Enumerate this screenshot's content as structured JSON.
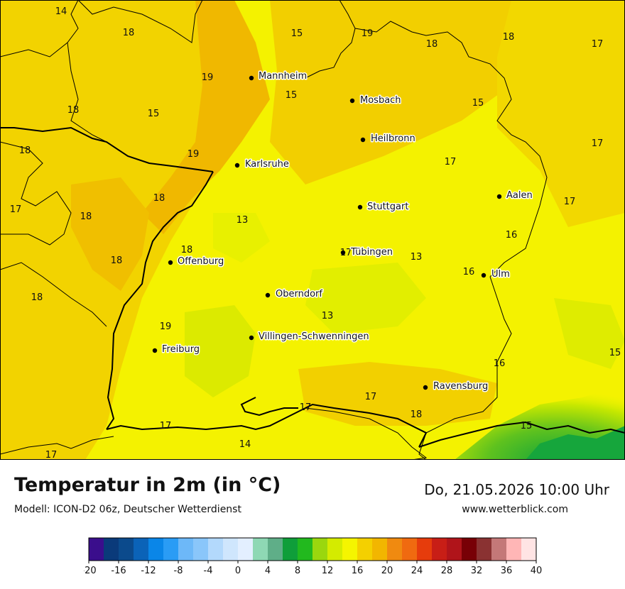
{
  "map": {
    "cities": [
      {
        "name": "Mannheim"
      },
      {
        "name": "Mosbach"
      },
      {
        "name": "Heilbronn"
      },
      {
        "name": "Karlsruhe"
      },
      {
        "name": "Stuttgart"
      },
      {
        "name": "Aalen"
      },
      {
        "name": "Tübingen"
      },
      {
        "name": "Offenburg"
      },
      {
        "name": "Ulm"
      },
      {
        "name": "Oberndorf"
      },
      {
        "name": "Villingen-Schwenningen"
      },
      {
        "name": "Freiburg"
      },
      {
        "name": "Ravensburg"
      }
    ],
    "temperature_labels": [
      "14",
      "18",
      "15",
      "19",
      "18",
      "17",
      "19",
      "15",
      "18",
      "15",
      "15",
      "18",
      "19",
      "17",
      "17",
      "18",
      "17",
      "18",
      "13",
      "18",
      "17",
      "18",
      "16",
      "17",
      "13",
      "16",
      "18",
      "18",
      "13",
      "19",
      "15",
      "16",
      "17",
      "18",
      "15",
      "17",
      "17",
      "17",
      "14"
    ]
  },
  "legend": {
    "title": "Temperatur in 2m (in °C)",
    "model": "Modell: ICON-D2 06z, Deutscher Wetterdienst",
    "datetime": "Do, 21.05.2026 10:00 Uhr",
    "website": "www.wetterblick.com",
    "colors": [
      "#3a0e8c",
      "#0a3a7a",
      "#0b4a8c",
      "#0b63b8",
      "#0a86e8",
      "#2a9cf5",
      "#6db8f8",
      "#8ac6fa",
      "#b3d9fc",
      "#cfe6fd",
      "#e3efff",
      "#8ed8b4",
      "#5fae88",
      "#0f9e3a",
      "#22b91e",
      "#9ad70e",
      "#d4eb00",
      "#f5f500",
      "#f4d000",
      "#f2b600",
      "#f08a10",
      "#f06a10",
      "#e63c0c",
      "#c81e16",
      "#b0141a",
      "#780006",
      "#8a3232",
      "#c47878",
      "#ffb6b6",
      "#ffe4e4"
    ],
    "ticks": [
      "-20",
      "-16",
      "-12",
      "-8",
      "-4",
      "0",
      "4",
      "8",
      "12",
      "16",
      "20",
      "24",
      "28",
      "32",
      "36",
      "40"
    ]
  }
}
